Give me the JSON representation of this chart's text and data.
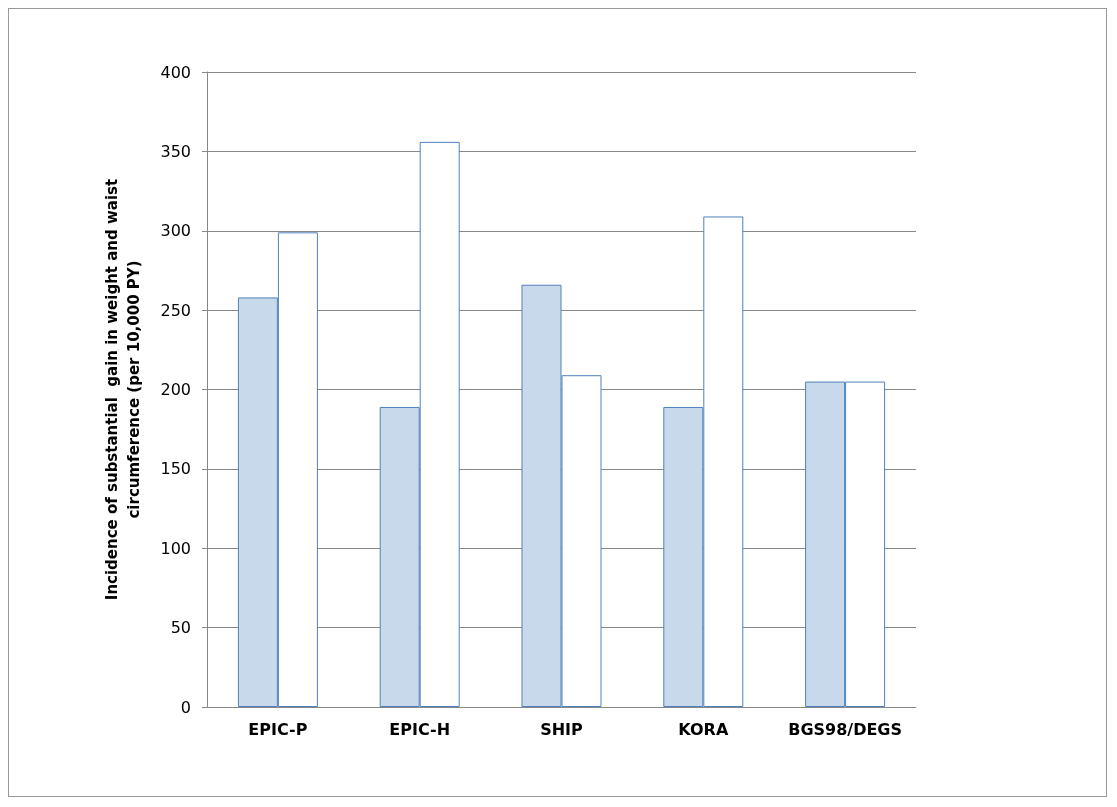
{
  "chart_data": {
    "type": "bar",
    "ylabel": "Incidence of substantial  gain in weight and waist circumference (per 10,000 PY)",
    "categories": [
      "EPIC-P",
      "EPIC-H",
      "SHIP",
      "KORA",
      "BGS98/DEGS"
    ],
    "series": [
      {
        "color": "#c9d9ec",
        "values": [
          258,
          189,
          266,
          189,
          205
        ]
      },
      {
        "color": "#ffffff",
        "values": [
          299,
          356,
          209,
          309,
          205
        ]
      }
    ],
    "ylim": [
      0,
      400
    ],
    "yticks": [
      0,
      50,
      100,
      150,
      200,
      250,
      300,
      350,
      400
    ],
    "grid": "y"
  }
}
